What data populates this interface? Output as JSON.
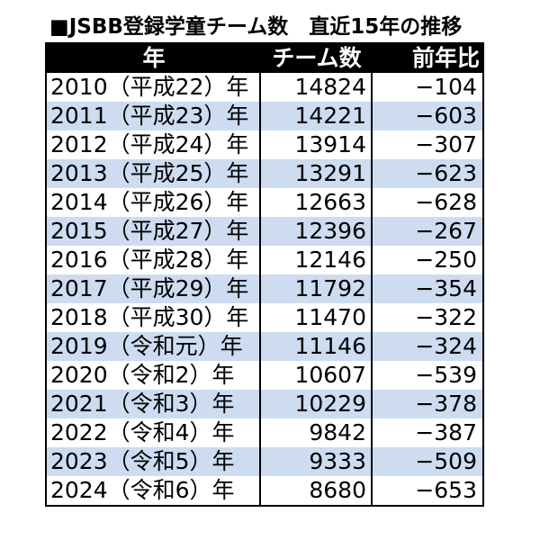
{
  "page_title": "■JSBB登録学童チーム数　直近15年の推移",
  "table": {
    "headers": [
      "年",
      "チーム数",
      "前年比"
    ],
    "rows": [
      {
        "year": "2010（平成22）年",
        "teams": "14824",
        "diff": "−104"
      },
      {
        "year": "2011（平成23）年",
        "teams": "14221",
        "diff": "−603"
      },
      {
        "year": "2012（平成24）年",
        "teams": "13914",
        "diff": "−307"
      },
      {
        "year": "2013（平成25）年",
        "teams": "13291",
        "diff": "−623"
      },
      {
        "year": "2014（平成26）年",
        "teams": "12663",
        "diff": "−628"
      },
      {
        "year": "2015（平成27）年",
        "teams": "12396",
        "diff": "−267"
      },
      {
        "year": "2016（平成28）年",
        "teams": "12146",
        "diff": "−250"
      },
      {
        "year": "2017（平成29）年",
        "teams": "11792",
        "diff": "−354"
      },
      {
        "year": "2018（平成30）年",
        "teams": "11470",
        "diff": "−322"
      },
      {
        "year": "2019（令和元）年",
        "teams": "11146",
        "diff": "−324"
      },
      {
        "year": "2020（令和2）年",
        "teams": "10607",
        "diff": "−539"
      },
      {
        "year": "2021（令和3）年",
        "teams": "10229",
        "diff": "−378"
      },
      {
        "year": "2022（令和4）年",
        "teams": "9842",
        "diff": "−387"
      },
      {
        "year": "2023（令和5）年",
        "teams": "9333",
        "diff": "−509"
      },
      {
        "year": "2024（令和6）年",
        "teams": "8680",
        "diff": "−653"
      }
    ]
  },
  "colors": {
    "header_bg": "#000000",
    "header_text": "#ffffff",
    "stripe": "#cddcf0",
    "border": "#000000"
  },
  "chart_data": {
    "type": "table",
    "title": "■JSBB登録学童チーム数　直近15年の推移",
    "columns": [
      "年",
      "チーム数",
      "前年比"
    ],
    "rows": [
      [
        "2010（平成22）年",
        14824,
        -104
      ],
      [
        "2011（平成23）年",
        14221,
        -603
      ],
      [
        "2012（平成24）年",
        13914,
        -307
      ],
      [
        "2013（平成25）年",
        13291,
        -623
      ],
      [
        "2014（平成26）年",
        12663,
        -628
      ],
      [
        "2015（平成27）年",
        12396,
        -267
      ],
      [
        "2016（平成28）年",
        12146,
        -250
      ],
      [
        "2017（平成29）年",
        11792,
        -354
      ],
      [
        "2018（平成30）年",
        11470,
        -322
      ],
      [
        "2019（令和元）年",
        11146,
        -324
      ],
      [
        "2020（令和2）年",
        10607,
        -539
      ],
      [
        "2021（令和3）年",
        10229,
        -378
      ],
      [
        "2022（令和4）年",
        9842,
        -387
      ],
      [
        "2023（令和5）年",
        9333,
        -509
      ],
      [
        "2024（令和6）年",
        8680,
        -653
      ]
    ],
    "layout": {
      "striped_rows": true,
      "stripe_color": "#cddcf0",
      "header_style": "black-band-white-text"
    }
  }
}
